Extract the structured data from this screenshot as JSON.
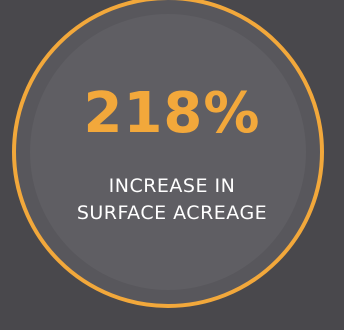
{
  "stat": {
    "value": "218%",
    "caption_line1": "INCREASE IN",
    "caption_line2": "SURFACE ACREAGE"
  },
  "colors": {
    "background": "#49484c",
    "circle_fill": "#58575c",
    "ring": "#f2a83b",
    "value_text": "#f2a83b",
    "caption_text": "#ffffff"
  }
}
